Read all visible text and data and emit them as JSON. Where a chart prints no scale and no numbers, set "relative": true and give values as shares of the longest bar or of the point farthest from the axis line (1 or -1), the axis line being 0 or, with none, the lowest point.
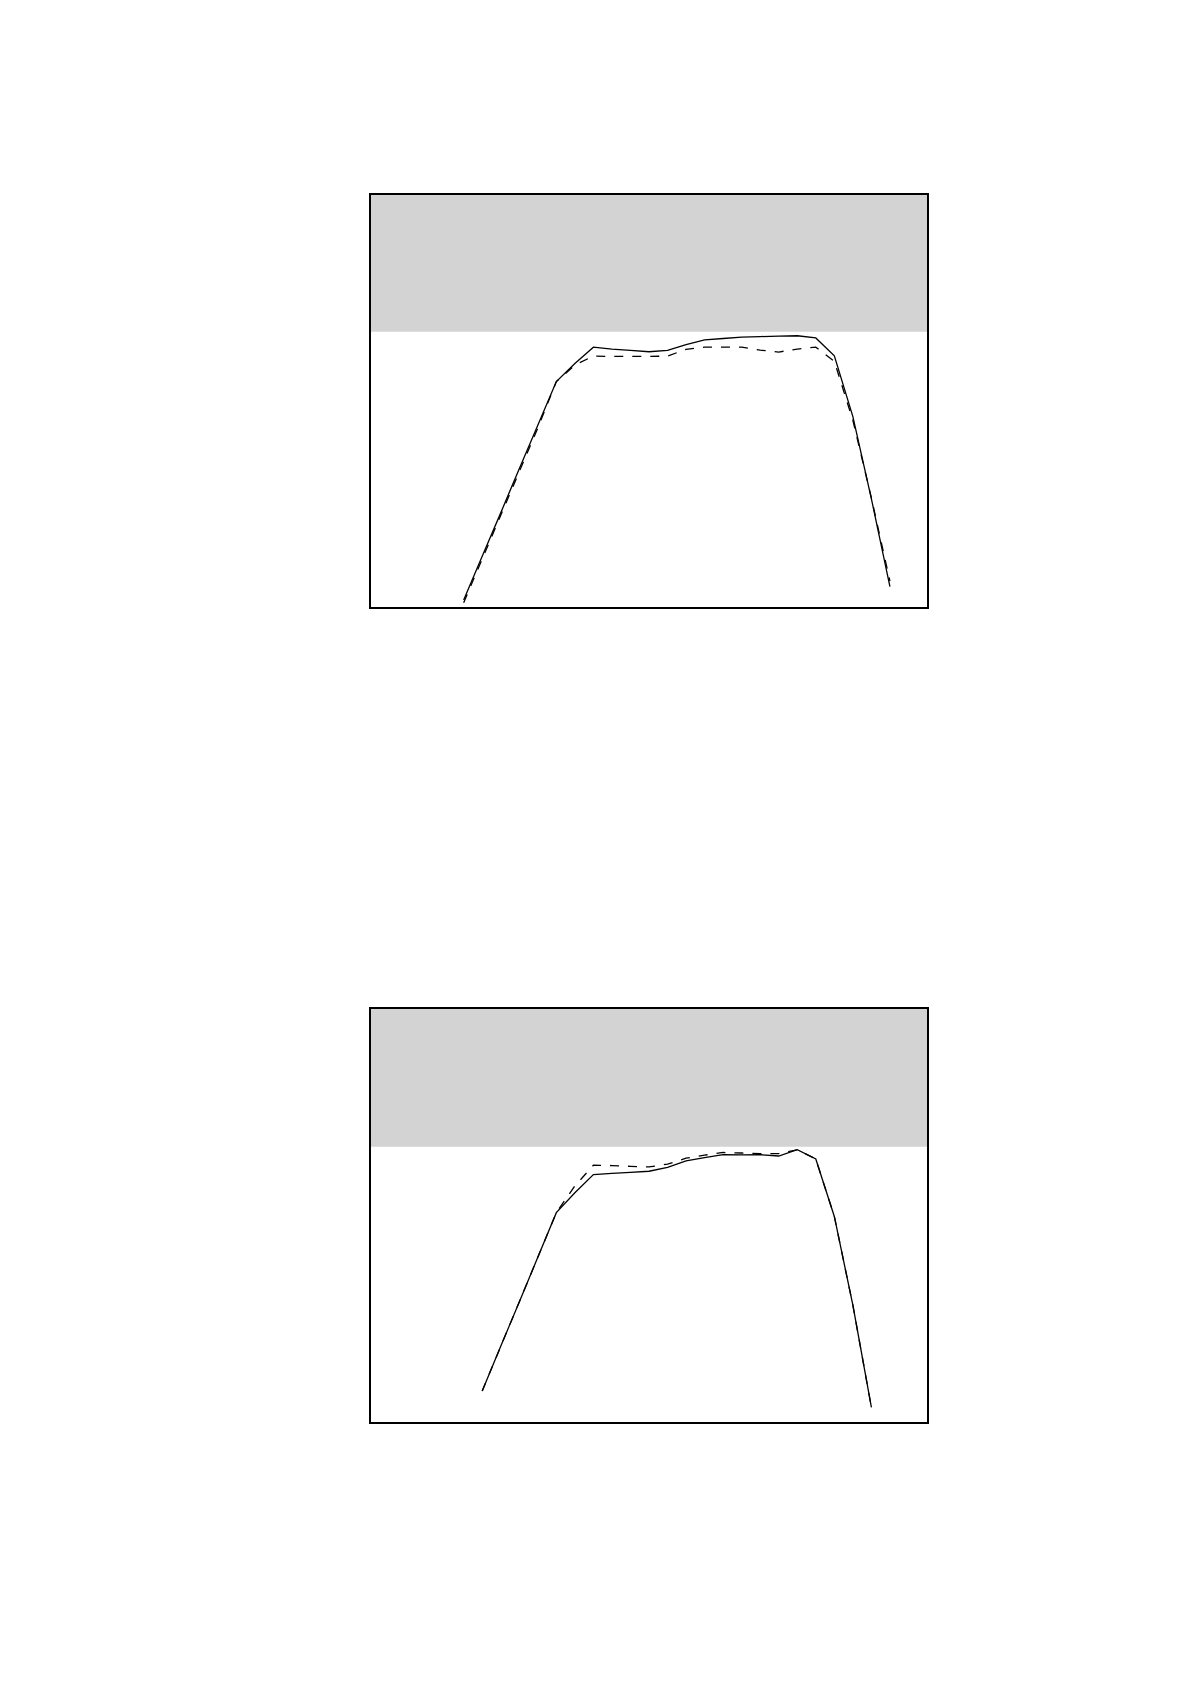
{
  "chart_data": [
    {
      "type": "line",
      "relative": true,
      "categories": [
        null,
        null,
        null,
        null,
        null,
        null,
        null,
        null,
        null,
        null,
        null,
        null,
        null,
        null,
        null,
        null,
        null,
        null,
        null,
        null,
        null,
        null,
        null,
        null,
        null,
        null,
        null,
        null,
        null,
        null,
        null
      ],
      "series": [
        {
          "color": "#000000",
          "line_style": "solid",
          "values": [
            null,
            null,
            null,
            null,
            null,
            0.026,
            0.187,
            0.347,
            0.51,
            0.67,
            0.831,
            0.898,
            0.958,
            0.951,
            0.946,
            0.941,
            0.946,
            0.967,
            0.985,
            0.99,
            0.995,
            0.997,
            0.999,
            1.0,
            0.992,
            0.926,
            0.702,
            0.399,
            0.075,
            null,
            null
          ]
        },
        {
          "color": "#000000",
          "line_style": "dashed",
          "values": [
            null,
            null,
            null,
            null,
            null,
            0.016,
            0.177,
            0.338,
            0.499,
            0.66,
            0.831,
            0.892,
            0.925,
            0.924,
            0.924,
            0.924,
            0.925,
            0.95,
            0.958,
            0.958,
            0.958,
            0.947,
            0.94,
            0.951,
            0.958,
            0.906,
            0.688,
            0.402,
            0.095,
            null,
            null
          ]
        }
      ],
      "bands": [
        {
          "axis": "y",
          "from": 1.015,
          "to": 1.519,
          "color": "#d3d3d3"
        }
      ]
    },
    {
      "type": "line",
      "relative": true,
      "categories": [
        null,
        null,
        null,
        null,
        null,
        null,
        null,
        null,
        null,
        null,
        null,
        null,
        null,
        null,
        null,
        null,
        null,
        null,
        null,
        null,
        null,
        null,
        null,
        null,
        null,
        null,
        null,
        null,
        null,
        null,
        null
      ],
      "series": [
        {
          "color": "#000000",
          "line_style": "solid",
          "values": [
            null,
            null,
            null,
            null,
            null,
            null,
            0.114,
            0.278,
            0.441,
            0.605,
            0.769,
            0.842,
            0.909,
            0.913,
            0.917,
            0.921,
            0.935,
            0.959,
            0.971,
            0.982,
            0.981,
            0.982,
            0.977,
            1.0,
            0.966,
            0.755,
            0.429,
            0.054,
            null,
            null,
            null
          ]
        },
        {
          "color": "#000000",
          "line_style": "dashed",
          "values": [
            null,
            null,
            null,
            null,
            null,
            null,
            0.114,
            0.278,
            0.441,
            0.605,
            0.769,
            0.867,
            0.943,
            0.942,
            0.939,
            0.937,
            0.947,
            0.969,
            0.98,
            0.99,
            0.988,
            0.986,
            0.986,
            1.0,
            0.966,
            0.755,
            0.429,
            0.054,
            null,
            null,
            null
          ]
        }
      ],
      "bands": [
        {
          "axis": "y",
          "from": 1.011,
          "to": 1.517,
          "color": "#d3d3d3"
        }
      ]
    }
  ]
}
